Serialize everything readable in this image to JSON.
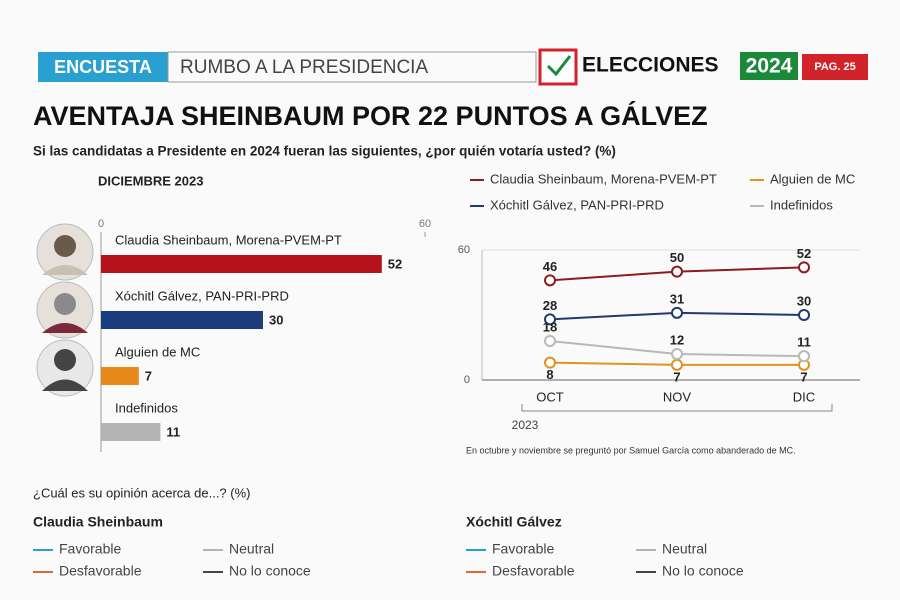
{
  "header": {
    "tag": "ENCUESTA",
    "section": "RUMBO A LA PRESIDENCIA",
    "brand": "ELECCIONES",
    "year": "2024",
    "page": "PAG. 25"
  },
  "headline": "AVENTAJA SHEINBAUM POR 22 PUNTOS A GÁLVEZ",
  "question": "Si las candidatas a Presidente en 2024 fueran las siguientes, ¿por quién votaría usted?  (%)",
  "chart_data": [
    {
      "type": "bar",
      "title": "DICIEMBRE 2023",
      "categories": [
        "Claudia Sheinbaum, Morena-PVEM-PT",
        "Xóchitl Gálvez, PAN-PRI-PRD",
        "Alguien de MC",
        "Indefinidos"
      ],
      "values": [
        52,
        30,
        7,
        11
      ],
      "colors": [
        "#b5121b",
        "#1c3d7d",
        "#e8891c",
        "#b4b4b4"
      ],
      "xlim": [
        0,
        60
      ],
      "xticks": [
        0,
        60
      ]
    },
    {
      "type": "line",
      "categories": [
        "OCT",
        "NOV",
        "DIC"
      ],
      "xlabel": "2023",
      "series": [
        {
          "name": "Claudia Sheinbaum, Morena-PVEM-PT",
          "color": "#8e1c1f",
          "values": [
            46,
            50,
            52
          ]
        },
        {
          "name": "Xóchitl Gálvez, PAN-PRI-PRD",
          "color": "#1f3a74",
          "values": [
            28,
            31,
            30
          ]
        },
        {
          "name": "Alguien de MC",
          "color": "#e0931e",
          "values": [
            8,
            7,
            7
          ]
        },
        {
          "name": "Indefinidos",
          "color": "#b8b8b8",
          "values": [
            18,
            12,
            11
          ]
        }
      ],
      "ylim": [
        0,
        60
      ],
      "yticks": [
        0,
        60
      ],
      "note": "En octubre y noviembre se preguntó por Samuel García como abanderado de MC."
    }
  ],
  "opinion": {
    "question": "¿Cuál es su opinión acerca de...? (%)",
    "candidates": [
      {
        "name": "Claudia Sheinbaum",
        "legend": [
          {
            "name": "Favorable",
            "color": "#2aa0d0"
          },
          {
            "name": "Neutral",
            "color": "#b4b4b4"
          },
          {
            "name": "Desfavorable",
            "color": "#e06a2a"
          },
          {
            "name": "No lo conoce",
            "color": "#444444"
          }
        ]
      },
      {
        "name": "Xóchitl Gálvez",
        "legend": [
          {
            "name": "Favorable",
            "color": "#2aa0d0"
          },
          {
            "name": "Neutral",
            "color": "#b4b4b4"
          },
          {
            "name": "Desfavorable",
            "color": "#e06a2a"
          },
          {
            "name": "No lo conoce",
            "color": "#444444"
          }
        ]
      }
    ]
  }
}
